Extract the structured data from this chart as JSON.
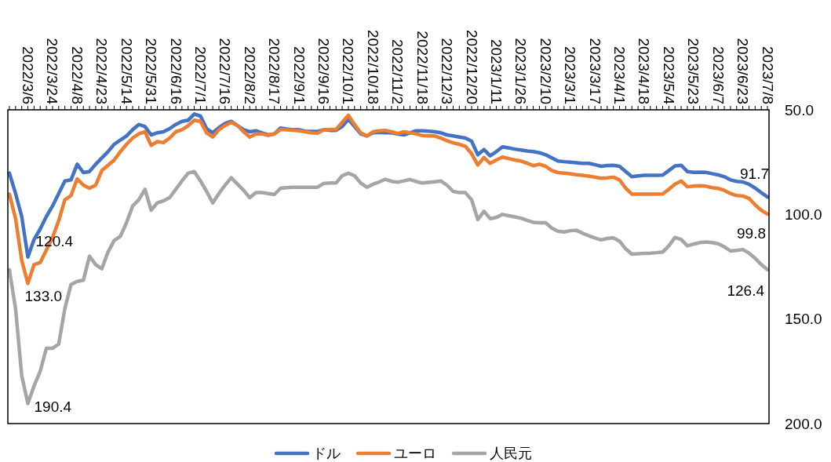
{
  "chart_data": {
    "type": "line",
    "categories": [
      null,
      null,
      null,
      "2022/3/6",
      null,
      null,
      null,
      "2022/3/24",
      null,
      null,
      null,
      "2022/4/8",
      null,
      null,
      null,
      "2022/4/23",
      null,
      null,
      null,
      "2022/5/14",
      null,
      null,
      null,
      "2022/5/31",
      null,
      null,
      null,
      "2022/6/16",
      null,
      null,
      null,
      "2022/7/1",
      null,
      null,
      null,
      "2022/7/16",
      null,
      null,
      null,
      "2022/8/2",
      null,
      null,
      null,
      "2022/8/17",
      null,
      null,
      null,
      "2022/9/1",
      null,
      null,
      null,
      "2022/9/16",
      null,
      null,
      null,
      "2022/10/1",
      null,
      null,
      null,
      "2022/10/18",
      null,
      null,
      null,
      "2022/11/2",
      null,
      null,
      null,
      "2022/11/18",
      null,
      null,
      null,
      "2022/12/3",
      null,
      null,
      null,
      "2022/12/20",
      null,
      null,
      null,
      "2023/1/11",
      null,
      null,
      null,
      "2023/1/26",
      null,
      null,
      null,
      "2023/2/10",
      null,
      null,
      null,
      "2023/3/1",
      null,
      null,
      null,
      "2023/3/17",
      null,
      null,
      null,
      "2023/4/1",
      null,
      null,
      null,
      "2023/4/18",
      null,
      null,
      null,
      "2023/5/4",
      null,
      null,
      null,
      "2023/5/23",
      null,
      null,
      null,
      "2023/6/7",
      null,
      null,
      null,
      "2023/6/23",
      null,
      null,
      null,
      "2023/7/8"
    ],
    "series": [
      {
        "name": "ドル",
        "color": "#4472c4",
        "values": [
          80.2,
          90,
          101,
          120.4,
          112,
          107,
          101,
          96,
          90,
          84,
          83.5,
          76,
          80,
          79.5,
          76,
          73,
          70,
          66.5,
          64.5,
          62.5,
          59.5,
          57,
          58,
          62,
          61,
          60.5,
          59,
          57,
          55.5,
          55,
          52,
          53,
          59,
          61,
          58.5,
          56.5,
          55.5,
          57.5,
          59.5,
          60.5,
          60,
          61,
          62,
          61.5,
          58.7,
          59.2,
          59.6,
          59.5,
          60.2,
          60.3,
          60.4,
          59.5,
          59.8,
          59.8,
          58,
          54.5,
          58,
          61.5,
          62.5,
          61,
          60.8,
          61,
          61,
          61.5,
          62,
          61,
          60,
          60,
          60.2,
          60.5,
          61,
          62,
          62.5,
          63,
          63.5,
          65,
          71.5,
          69,
          72,
          70,
          67.7,
          68.2,
          68.8,
          69.2,
          69.7,
          70,
          70.5,
          71.5,
          73,
          74.5,
          74.8,
          75,
          75.3,
          75.6,
          75.6,
          76.2,
          77,
          76.6,
          76.5,
          77,
          79.5,
          82,
          81.6,
          81.3,
          81.3,
          81.3,
          81.2,
          79,
          76.8,
          76.5,
          79.5,
          79.9,
          79.8,
          79.9,
          80.5,
          81.1,
          82,
          83.5,
          84.2,
          84.5,
          85.6,
          87.4,
          89.6,
          91.7
        ]
      },
      {
        "name": "ユーロ",
        "color": "#ed7d31",
        "values": [
          90.3,
          102,
          122,
          133.0,
          124,
          123,
          117,
          111,
          103,
          93,
          91,
          83,
          86,
          87.5,
          86,
          79,
          76.5,
          74,
          70,
          66.5,
          63.5,
          61.5,
          60.5,
          67,
          65.2,
          65.7,
          63.5,
          60.5,
          59.5,
          57.6,
          55,
          55.5,
          61,
          63,
          59.5,
          57.5,
          56,
          57.5,
          60.5,
          63,
          61.5,
          61.5,
          62.2,
          61.5,
          59.4,
          59.6,
          59.8,
          60,
          60.5,
          61,
          61.2,
          59.6,
          59.4,
          59.4,
          56,
          52.6,
          57,
          61,
          62.5,
          60.5,
          60,
          59.8,
          60.5,
          61.3,
          60.5,
          61,
          61.5,
          62.3,
          62.5,
          62.5,
          63.5,
          64.8,
          65.8,
          66.5,
          67.5,
          71,
          76.4,
          72.8,
          75.6,
          74,
          72.6,
          73.3,
          74,
          74.5,
          75.5,
          76.7,
          76,
          77,
          79,
          80,
          80.3,
          80.6,
          81,
          81.3,
          81.7,
          82.2,
          82.7,
          82.5,
          82.2,
          83.5,
          87.5,
          90.3,
          90.3,
          90.3,
          90.3,
          90.3,
          90.2,
          88,
          85.5,
          84,
          86.8,
          86.5,
          86.3,
          86.5,
          87.2,
          87.6,
          88.5,
          90,
          91,
          91.2,
          92.3,
          95.5,
          98,
          99.8
        ]
      },
      {
        "name": "人民元",
        "color": "#a5a5a5",
        "values": [
          126.5,
          145,
          177,
          190.4,
          182,
          175,
          164,
          164,
          162,
          145,
          133.5,
          132,
          131.5,
          120,
          124,
          126,
          118,
          112.5,
          110.5,
          104,
          96,
          93,
          88,
          98,
          94.5,
          93.5,
          92,
          88,
          84,
          80.3,
          79.5,
          84,
          89,
          94.5,
          90,
          86,
          82.5,
          85.5,
          88.5,
          92,
          89.6,
          89.6,
          90,
          90.5,
          87.5,
          87.2,
          87,
          87,
          87,
          87,
          87,
          85.2,
          85,
          85,
          81.5,
          80.3,
          81.5,
          85,
          87,
          85.6,
          84.5,
          83.2,
          84.2,
          84.6,
          84,
          83.3,
          84.3,
          85,
          84.7,
          84.4,
          84,
          86,
          89,
          89.6,
          89.6,
          93,
          102.5,
          98.5,
          102,
          101.5,
          100,
          100.6,
          101.2,
          101.8,
          102.8,
          103.8,
          104,
          104,
          106.5,
          108,
          108.4,
          107.8,
          107.6,
          109,
          110.2,
          111.3,
          112.2,
          111.5,
          111.2,
          112.8,
          116.5,
          119,
          118.8,
          118.6,
          118.5,
          118.3,
          118,
          115,
          111,
          112,
          115,
          114.2,
          113.5,
          113.2,
          113.5,
          114,
          115.5,
          117.5,
          117.2,
          116.8,
          118.5,
          121,
          124,
          126.4
        ]
      }
    ],
    "ylim": [
      200,
      50
    ],
    "yticks": [
      {
        "value": 50,
        "label": "50.0"
      },
      {
        "value": 100,
        "label": "100.0"
      },
      {
        "value": 150,
        "label": "150.0"
      },
      {
        "value": 200,
        "label": "200.0"
      }
    ],
    "annotations": [
      {
        "text": "120.4",
        "x": "2022/3/6",
        "y": 120.4
      },
      {
        "text": "133.0",
        "x": "2022/3/6",
        "y": 133.0
      },
      {
        "text": "190.4",
        "x": "2022/3/6",
        "y": 190.4
      },
      {
        "text": "91.7",
        "x": "2023/7/8",
        "y": 91.7
      },
      {
        "text": "99.8",
        "x": "2023/7/8",
        "y": 99.8
      },
      {
        "text": "126.4",
        "x": "2023/7/8",
        "y": 126.4
      }
    ],
    "legend": "bottom"
  }
}
